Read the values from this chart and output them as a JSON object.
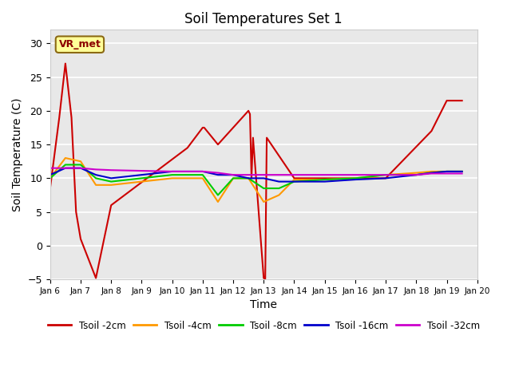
{
  "title": "Soil Temperatures Set 1",
  "xlabel": "Time",
  "ylabel": "Soil Temperature (C)",
  "xlim": [
    0,
    14
  ],
  "ylim": [
    -5,
    32
  ],
  "yticks": [
    -5,
    0,
    5,
    10,
    15,
    20,
    25,
    30
  ],
  "xtick_positions": [
    0,
    1,
    2,
    3,
    4,
    5,
    6,
    7,
    8,
    9,
    10,
    11,
    12,
    13,
    14
  ],
  "xtick_labels": [
    "Jan 6",
    "Jan 7",
    "Jan 8",
    "Jan 9",
    "Jan 10",
    "Jan 11",
    "Jan 12",
    "Jan 13",
    "Jan 14",
    "Jan 15",
    "Jan 16",
    "Jan 17",
    "Jan 18",
    "Jan 19",
    "Jan 20"
  ],
  "annotation_text": "VR_met",
  "background_color": "#e8e8e8",
  "series": {
    "Tsoil -2cm": {
      "color": "#cc0000",
      "x": [
        0,
        0.3,
        0.5,
        0.7,
        0.85,
        1.0,
        1.5,
        2.0,
        4.5,
        5.0,
        5.05,
        5.5,
        6.5,
        6.55,
        6.6,
        6.65,
        7.0,
        7.05,
        7.1,
        8.0,
        9.0,
        10.0,
        11.0,
        12.5,
        13.0,
        13.5
      ],
      "y": [
        8.5,
        19.0,
        27.0,
        19.0,
        5.0,
        1.0,
        -4.8,
        6.0,
        14.5,
        17.5,
        17.5,
        15.0,
        20.0,
        19.5,
        10.0,
        16.0,
        -4.8,
        -5.0,
        16.0,
        10.0,
        10.0,
        10.0,
        10.0,
        17.0,
        21.5,
        21.5
      ]
    },
    "Tsoil -4cm": {
      "color": "#ff9900",
      "x": [
        0,
        0.5,
        1.0,
        1.5,
        2.0,
        4.0,
        5.0,
        5.5,
        6.0,
        6.5,
        7.0,
        7.5,
        8.0,
        9.0,
        10.0,
        11.0,
        12.0,
        12.5,
        13.0,
        13.5
      ],
      "y": [
        10.0,
        13.0,
        12.5,
        9.0,
        9.0,
        10.0,
        10.0,
        6.5,
        10.0,
        10.0,
        6.5,
        7.5,
        9.8,
        9.8,
        10.0,
        10.5,
        10.8,
        11.0,
        11.0,
        11.0
      ]
    },
    "Tsoil -8cm": {
      "color": "#00cc00",
      "x": [
        0,
        0.5,
        1.0,
        1.5,
        2.0,
        4.0,
        5.0,
        5.5,
        6.0,
        6.5,
        7.0,
        7.5,
        8.0,
        9.0,
        10.0,
        11.0,
        12.0,
        12.5,
        13.0,
        13.5
      ],
      "y": [
        10.0,
        12.0,
        12.0,
        10.0,
        9.5,
        10.5,
        10.5,
        7.5,
        10.0,
        10.0,
        8.5,
        8.5,
        9.5,
        9.8,
        10.0,
        10.5,
        10.5,
        10.8,
        11.0,
        11.0
      ]
    },
    "Tsoil -16cm": {
      "color": "#0000cc",
      "x": [
        0,
        0.5,
        1.0,
        1.5,
        2.0,
        4.0,
        5.0,
        5.5,
        6.0,
        6.5,
        7.0,
        7.5,
        8.0,
        9.0,
        10.0,
        11.0,
        12.0,
        12.5,
        13.0,
        13.5
      ],
      "y": [
        10.5,
        11.5,
        11.5,
        10.5,
        10.0,
        11.0,
        11.0,
        10.5,
        10.5,
        10.0,
        10.0,
        9.5,
        9.5,
        9.5,
        9.8,
        10.0,
        10.5,
        10.8,
        11.0,
        11.0
      ]
    },
    "Tsoil -32cm": {
      "color": "#cc00cc",
      "x": [
        0,
        0.5,
        1.0,
        1.5,
        2.0,
        4.0,
        5.0,
        5.5,
        6.0,
        6.5,
        7.0,
        7.5,
        8.0,
        9.0,
        10.0,
        11.0,
        12.0,
        12.5,
        13.0,
        13.5
      ],
      "y": [
        11.5,
        11.5,
        11.5,
        11.3,
        11.2,
        11.0,
        11.0,
        10.8,
        10.5,
        10.5,
        10.5,
        10.5,
        10.5,
        10.5,
        10.5,
        10.5,
        10.5,
        10.7,
        10.7,
        10.7
      ]
    }
  },
  "series_order": [
    "Tsoil -2cm",
    "Tsoil -4cm",
    "Tsoil -8cm",
    "Tsoil -16cm",
    "Tsoil -32cm"
  ]
}
